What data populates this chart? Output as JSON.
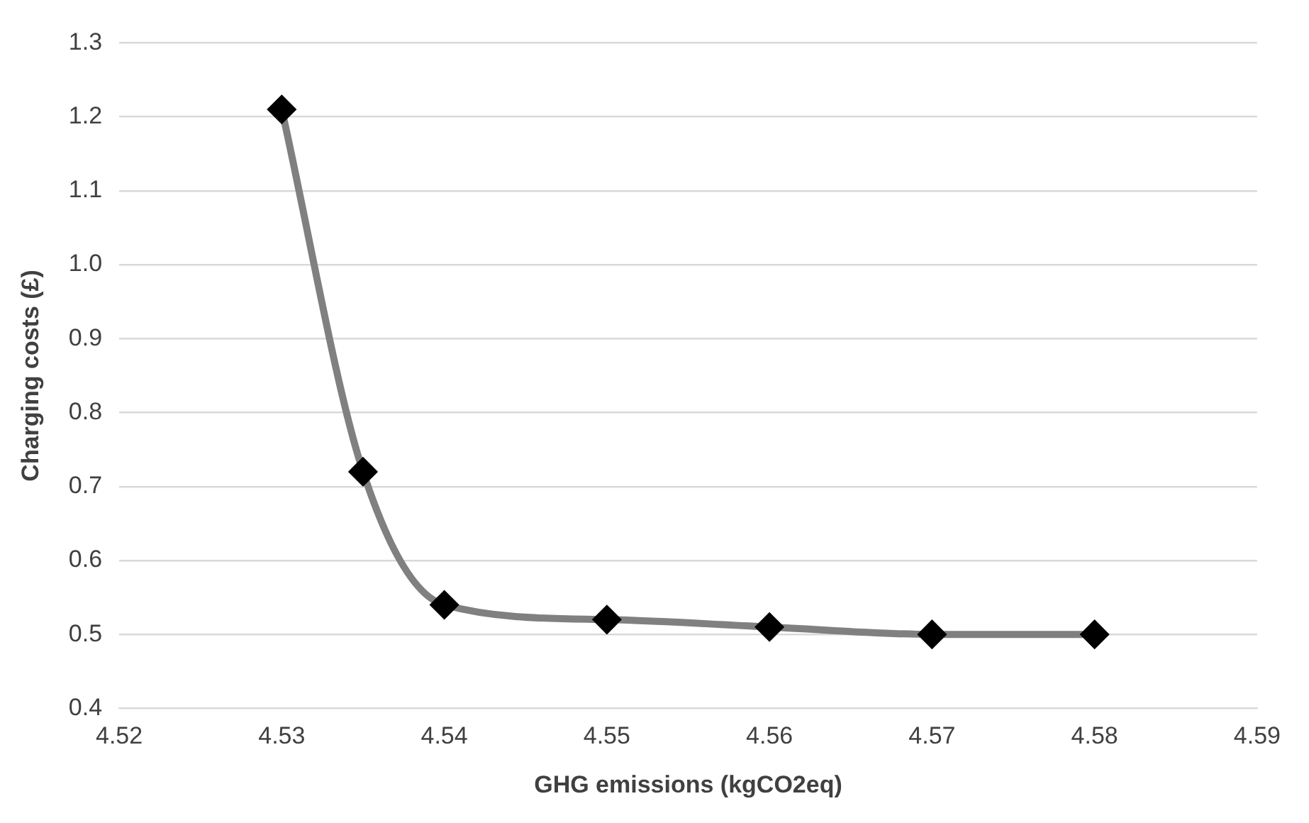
{
  "chart_data": {
    "type": "line",
    "xlabel": "GHG emissions (kgCO2eq)",
    "ylabel": "Charging costs (£)",
    "x": [
      4.53,
      4.535,
      4.54,
      4.55,
      4.56,
      4.57,
      4.58
    ],
    "series": [
      {
        "color": "#808080",
        "colors": [
          "#000000",
          "#000000",
          "#000000",
          "#000000",
          "#000000",
          "#000000",
          "#000000"
        ],
        "values": [
          1.21,
          0.72,
          0.54,
          0.52,
          0.51,
          0.5,
          0.5
        ]
      }
    ],
    "xlim": [
      4.52,
      4.59
    ],
    "xticks": [
      4.52,
      4.53,
      4.54,
      4.55,
      4.56,
      4.57,
      4.58,
      4.59
    ],
    "ylim": [
      0.4,
      1.3
    ],
    "yticks": [
      0.4,
      0.5,
      0.6,
      0.7,
      0.8,
      0.9,
      {
        "value": 1,
        "label": "1.0"
      },
      1.1,
      1.2,
      1.3
    ],
    "grid": "y",
    "legend": false,
    "marker": "diamond",
    "line_style": "solid"
  }
}
